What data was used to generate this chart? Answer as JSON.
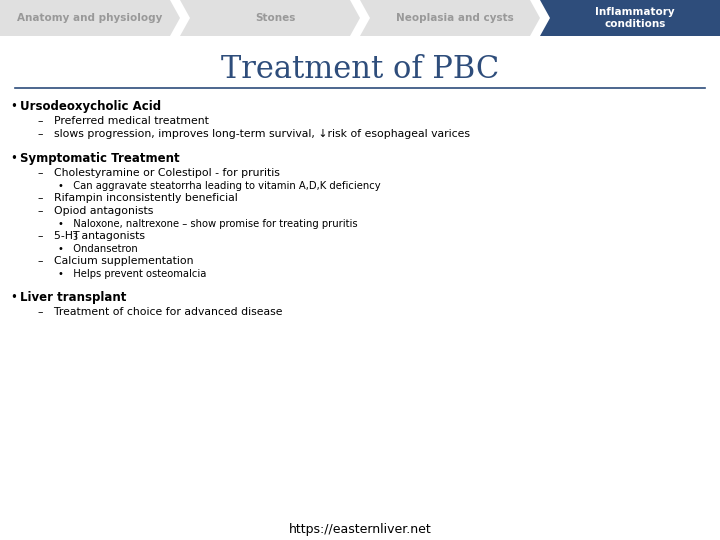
{
  "title": "Treatment of PBC",
  "title_color": "#2e4d7b",
  "title_fontsize": 22,
  "nav_tabs": [
    "Anatomy and physiology",
    "Stones",
    "Neoplasia and cysts",
    "Inflammatory\nconditions"
  ],
  "nav_active_index": 3,
  "nav_active_color": "#2e4d7b",
  "nav_inactive_color": "#e0e0e0",
  "nav_active_text_color": "#ffffff",
  "nav_inactive_text_color": "#999999",
  "divider_color": "#2e4d7b",
  "content": [
    {
      "type": "bullet1",
      "text": "Ursodeoxycholic Acid"
    },
    {
      "type": "bullet2",
      "text": "–   Preferred medical treatment"
    },
    {
      "type": "bullet2",
      "text": "–   slows progression, improves long-term survival, ↓risk of esophageal varices"
    },
    {
      "type": "spacer"
    },
    {
      "type": "bullet1",
      "text": "Symptomatic Treatment"
    },
    {
      "type": "bullet2",
      "text": "–   Cholestyramine or Colestipol - for pruritis"
    },
    {
      "type": "bullet3",
      "text": "•   Can aggravate steatorrha leading to vitamin A,D,K deficiency"
    },
    {
      "type": "bullet2",
      "text": "–   Rifampin inconsistently beneficial"
    },
    {
      "type": "bullet2",
      "text": "–   Opiod antagonists"
    },
    {
      "type": "bullet3",
      "text": "•   Naloxone, naltrexone – show promise for treating pruritis"
    },
    {
      "type": "bullet2_ht3"
    },
    {
      "type": "bullet3",
      "text": "•   Ondansetron"
    },
    {
      "type": "bullet2",
      "text": "–   Calcium supplementation"
    },
    {
      "type": "bullet3",
      "text": "•   Helps prevent osteomalcia"
    },
    {
      "type": "spacer"
    },
    {
      "type": "bullet1",
      "text": "Liver transplant"
    },
    {
      "type": "bullet2",
      "text": "–   Treatment of choice for advanced disease"
    }
  ],
  "footer": "https://easternliver.net",
  "footer_fontsize": 9,
  "bg_color": "#ffffff"
}
